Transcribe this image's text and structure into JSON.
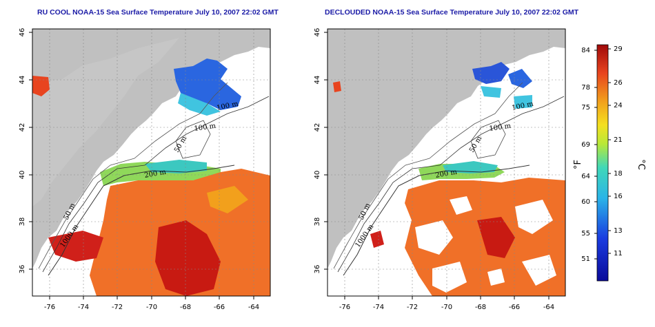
{
  "titles": {
    "left": "RU COOL NOAA-15 Sea Surface Temperature July 10, 2007 22:02 GMT",
    "right": "DECLOUDED NOAA-15 Sea Surface Temperature July 10, 2007 22:02 GMT"
  },
  "axes": {
    "lon_ticks": [
      "-76",
      "-74",
      "-72",
      "-70",
      "-68",
      "-66",
      "-64"
    ],
    "lat_ticks": [
      "46",
      "44",
      "42",
      "40",
      "38",
      "36"
    ]
  },
  "contours": {
    "isobath_50": "50 m",
    "isobath_100": "100 m",
    "isobath_200": "200 m",
    "isobath_1000": "1000 m"
  },
  "colorbar": {
    "fahrenheit_label": "°F",
    "celsius_label": "°C",
    "fahrenheit_ticks": [
      "84",
      "78",
      "75",
      "69",
      "64",
      "60",
      "55",
      "51"
    ],
    "celsius_ticks": [
      "29",
      "26",
      "24",
      "21",
      "18",
      "16",
      "13",
      "11"
    ]
  },
  "colors": {
    "land": "#c0c0c0",
    "ocean_no_data": "#ffffff",
    "title": "#1a1aa6",
    "warm": "#e8441f",
    "hot": "#c71010",
    "mid": "#f2a01c",
    "cool": "#33c8d8",
    "cold": "#1f53d6"
  }
}
